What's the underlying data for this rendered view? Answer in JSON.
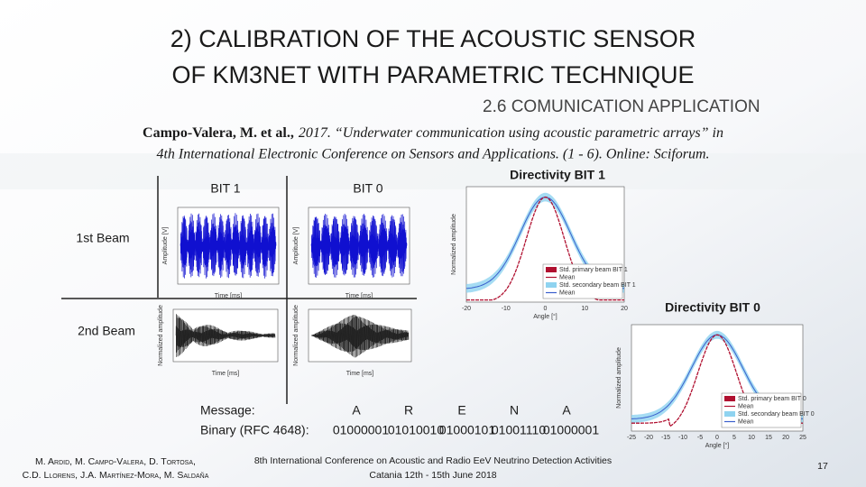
{
  "header": {
    "title_lines": [
      "2) CALIBRATION OF THE ACOUSTIC SENSOR",
      "OF KM3NET WITH PARAMETRIC TECHNIQUE"
    ],
    "subtitle": "2.6 COMUNICATION APPLICATION"
  },
  "citation": {
    "authors": "Campo-Valera, M. et al.,",
    "line1": "2017. “Underwater communication using acoustic parametric arrays” in",
    "line2": "4th International Electronic Conference on Sensors and Applications. (1 - 6). Online: Sciforum."
  },
  "grid": {
    "columns": [
      "BIT 1",
      "BIT 0"
    ],
    "rows": [
      "1st Beam",
      "2nd Beam"
    ],
    "first_beam_axes": {
      "y": "Amplitude [V]",
      "x": "Time [ms]"
    },
    "second_beam_axes": {
      "y": "Normalized amplitude",
      "x": "Time [ms]"
    }
  },
  "directivity": [
    {
      "title": "Directivity BIT 1",
      "y_label": "Normalized amplitude",
      "x_label": "Angle [°]",
      "x_ticks": [
        "-20",
        "-10",
        "0",
        "10",
        "20"
      ],
      "legend": [
        "Std. primary beam BIT 1",
        "Mean",
        "Std. secondary beam BIT 1",
        "Mean"
      ]
    },
    {
      "title": "Directivity BIT 0",
      "y_label": "Normalized amplitude",
      "x_label": "Angle [°]",
      "x_ticks": [
        "-25",
        "-20",
        "-15",
        "-10",
        "-5",
        "0",
        "5",
        "10",
        "15",
        "20",
        "25"
      ],
      "legend": [
        "Std. primary beam BIT 0",
        "Mean",
        "Std. secondary beam BIT 0",
        "Mean"
      ]
    }
  ],
  "message": {
    "label": "Message:",
    "letters": [
      "A",
      "R",
      "E",
      "N",
      "A"
    ],
    "binary_label": "Binary (RFC 4648):",
    "binary": [
      "01000001",
      "01010010",
      "01000101",
      "01001110",
      "01000001"
    ]
  },
  "footer": {
    "authors": [
      "M. Ardid, M. Campo-Valera, D. Tortosa,",
      "C.D. Llorens, J.A. Martínez-Mora, M. Saldaña"
    ],
    "conference": [
      "8th International Conference on Acoustic and Radio EeV Neutrino Detection Activities",
      "Catania 12th - 15th June 2018"
    ],
    "page": "17"
  }
}
